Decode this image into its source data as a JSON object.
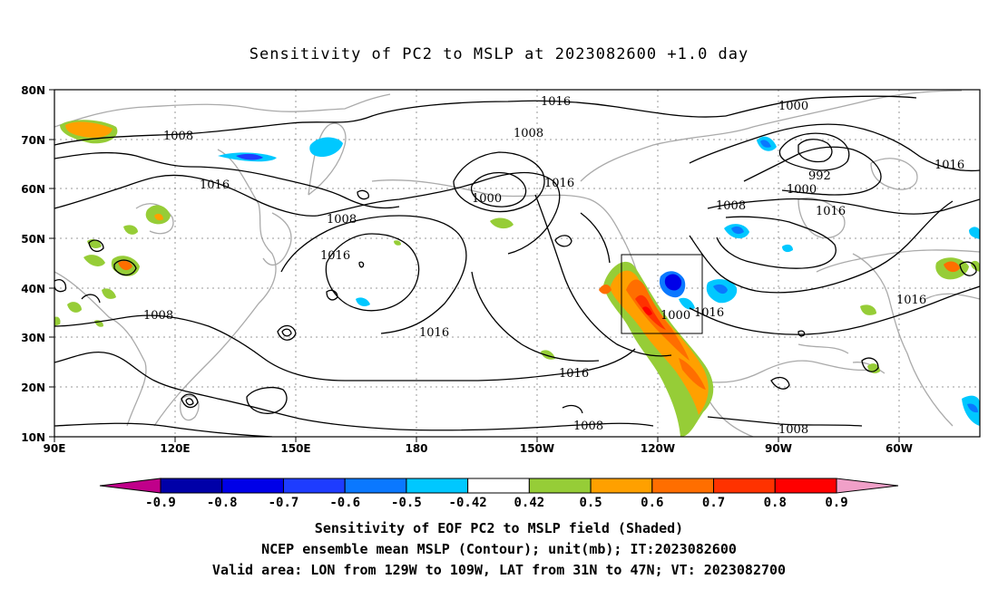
{
  "title": "Sensitivity of PC2 to MSLP at 2023082600 +1.0 day",
  "lat_ticks": [
    "80N",
    "70N",
    "60N",
    "50N",
    "40N",
    "30N",
    "20N",
    "10N"
  ],
  "lon_ticks": [
    "90E",
    "120E",
    "150E",
    "180",
    "150W",
    "120W",
    "90W",
    "60W"
  ],
  "contour_labels": {
    "c1": "1016",
    "c2": "1000",
    "c3": "1008",
    "c4": "1008",
    "c5": "1016",
    "c6": "1000",
    "c7": "1016",
    "c8": "992",
    "c9": "1000",
    "c10": "1016",
    "c11": "1008",
    "c12": "1016",
    "c13": "1008",
    "c14": "1016",
    "c15": "1016",
    "c16": "1008",
    "c17": "1016",
    "c18": "1016",
    "c19": "1016",
    "c20": "1000",
    "c21": "1016",
    "c22": "1008",
    "c23": "1008"
  },
  "colorbar": {
    "ticks": [
      "-0.9",
      "-0.8",
      "-0.7",
      "-0.6",
      "-0.5",
      "-0.42",
      "0.42",
      "0.5",
      "0.6",
      "0.7",
      "0.8",
      "0.9"
    ],
    "colors": [
      "#c0008a",
      "#0000a8",
      "#0000e8",
      "#1e3cff",
      "#0a78ff",
      "#00c8ff",
      "#ffffff",
      "#96cd37",
      "#ffa000",
      "#ff6e00",
      "#ff3200",
      "#ff0000",
      "#f0a0c8"
    ]
  },
  "caption": {
    "line1": "Sensitivity of EOF PC2 to MSLP field (Shaded)",
    "line2": "NCEP ensemble mean MSLP (Contour); unit(mb); IT:2023082600",
    "line3": "Valid area: LON from 129W to 109W, LAT from 31N to 47N; VT: 2023082700"
  }
}
